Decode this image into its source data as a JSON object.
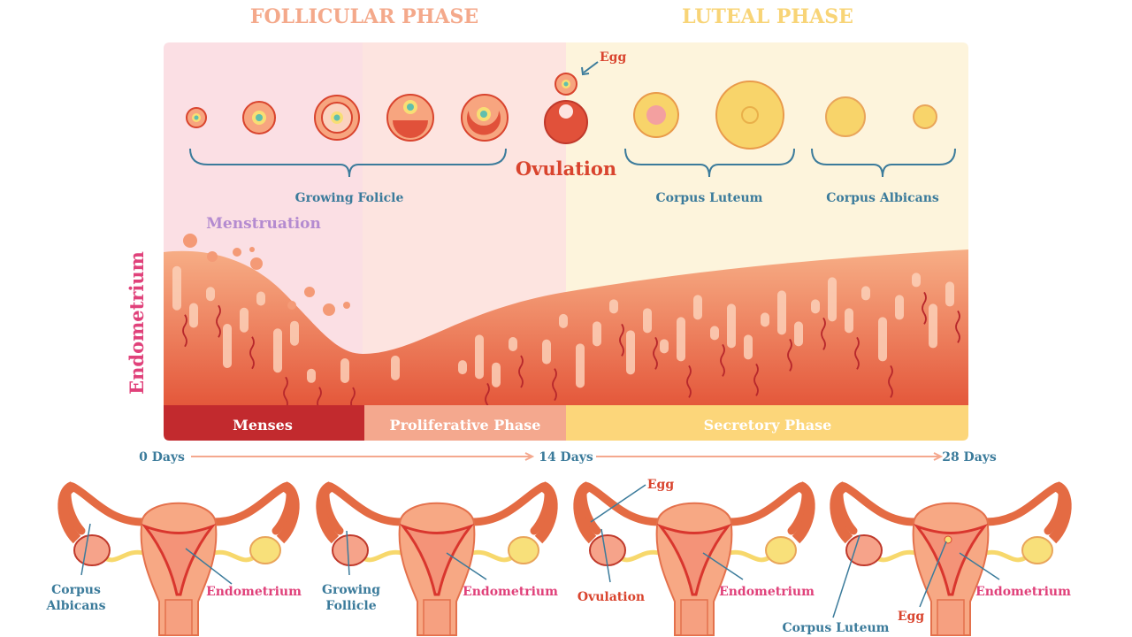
{
  "phases": {
    "follicular": "FOLLICULAR PHASE",
    "luteal": "LUTEAL PHASE"
  },
  "ovary_stages": {
    "egg": "Egg",
    "ovulation": "Ovulation",
    "growing_follicle": "Growing Folicle",
    "corpus_luteum": "Corpus Luteum",
    "corpus_albicans": "Corpus Albicans"
  },
  "endometrium": {
    "side_label": "Endometrium",
    "menstruation": "Menstruation"
  },
  "cycle_bar": [
    "Menses",
    "Proliferative Phase",
    "Secretory Phase"
  ],
  "timeline": [
    "0 Days",
    "14 Days",
    "28 Days"
  ],
  "uterus_figures": [
    {
      "ovary_label": [
        "Corpus",
        "Albicans"
      ],
      "endometrium_label": "Endometrium"
    },
    {
      "ovary_label": [
        "Growing",
        "Follicle"
      ],
      "endometrium_label": "Endometrium"
    },
    {
      "egg_label": "Egg",
      "ovary_label": [
        "Ovulation"
      ],
      "endometrium_label": "Endometrium"
    },
    {
      "ovary_label": [
        "Corpus Luteum"
      ],
      "egg_label": "Egg",
      "endometrium_label": "Endometrium"
    }
  ],
  "colors": {
    "follicular_title": "#f4a98b",
    "luteal_title": "#f8d477",
    "label_blue": "#3b7b9b",
    "label_pink": "#e0417a",
    "ovulation_red": "#d9442e",
    "menstruation_purple": "#b48bd0",
    "menses": "#c22a2e",
    "proliferative": "#f4a88e",
    "secretory": "#fcd67a"
  }
}
